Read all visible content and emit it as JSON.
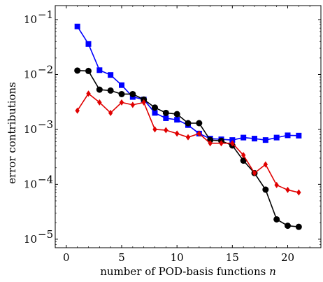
{
  "chart_data": {
    "type": "line",
    "title": "",
    "xlabel": "number of POD-basis functions ",
    "xlabel_var": "n",
    "ylabel": "error contributions",
    "xlim": [
      -1,
      23
    ],
    "ylim": [
      7e-06,
      0.18
    ],
    "yscale": "log",
    "grid": false,
    "legend": "none",
    "x_ticks": [
      {
        "value": 0,
        "label": "0"
      },
      {
        "value": 5,
        "label": "5"
      },
      {
        "value": 10,
        "label": "10"
      },
      {
        "value": 15,
        "label": "15"
      },
      {
        "value": 20,
        "label": "20"
      }
    ],
    "y_ticks": [
      {
        "value": 0.1,
        "base": "10",
        "exp": "−1"
      },
      {
        "value": 0.01,
        "base": "10",
        "exp": "−2"
      },
      {
        "value": 0.001,
        "base": "10",
        "exp": "−3"
      },
      {
        "value": 0.0001,
        "base": "10",
        "exp": "−4"
      },
      {
        "value": 1e-05,
        "base": "10",
        "exp": "−5"
      }
    ],
    "x": [
      1,
      2,
      3,
      4,
      5,
      6,
      7,
      8,
      9,
      10,
      11,
      12,
      13,
      14,
      15,
      16,
      17,
      18,
      19,
      20,
      21
    ],
    "series": [
      {
        "color": "#0000ff",
        "marker": "square",
        "values": [
          0.075,
          0.036,
          0.012,
          0.0098,
          0.0064,
          0.0039,
          0.0035,
          0.002,
          0.0016,
          0.0015,
          0.0012,
          0.00084,
          0.00068,
          0.00066,
          0.00064,
          0.00071,
          0.00068,
          0.00064,
          0.00071,
          0.00078,
          0.00077
        ]
      },
      {
        "color": "#000000",
        "marker": "circle",
        "values": [
          0.0118,
          0.0116,
          0.0053,
          0.0051,
          0.0044,
          0.0044,
          0.0035,
          0.0025,
          0.002,
          0.0019,
          0.0013,
          0.0013,
          0.00064,
          0.00062,
          0.00051,
          0.00027,
          0.00016,
          8e-05,
          2.3e-05,
          1.76e-05,
          1.68e-05
        ]
      },
      {
        "color": "#e00000",
        "marker": "diamond",
        "values": [
          0.0022,
          0.0045,
          0.0031,
          0.002,
          0.0031,
          0.0028,
          0.0031,
          0.001,
          0.00097,
          0.00084,
          0.00072,
          0.00084,
          0.00056,
          0.00056,
          0.00056,
          0.00034,
          0.00016,
          0.00023,
          9.7e-05,
          7.9e-05,
          7.1e-05
        ]
      }
    ]
  }
}
